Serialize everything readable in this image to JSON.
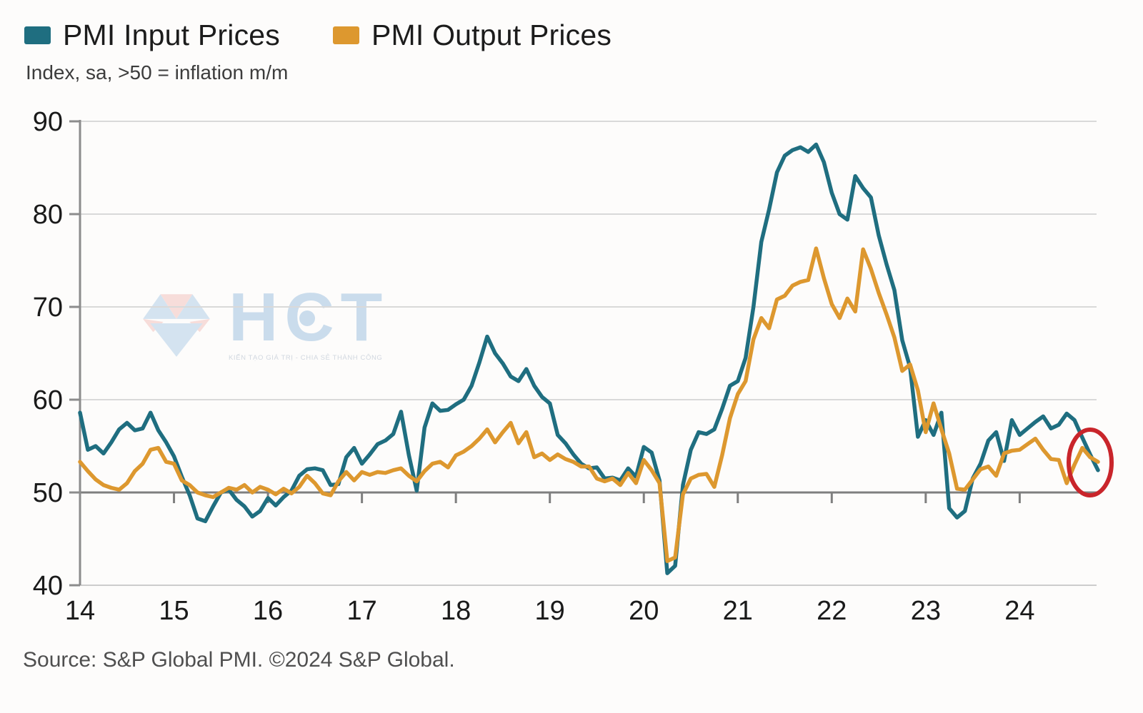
{
  "legend": [
    {
      "label": "PMI Input Prices",
      "color": "#1f6e80"
    },
    {
      "label": "PMI Output Prices",
      "color": "#dd982f"
    }
  ],
  "subtitle": "Index, sa, >50 = inflation m/m",
  "source": "Source: S&P Global PMI. ©2024 S&P Global.",
  "watermark": {
    "text": "HCT",
    "tagline": "KIẾN TẠO GIÁ TRỊ - CHIA SẺ THÀNH CÔNG",
    "text_color": "#a9c7e3",
    "logo_blue": "#b9d3ea",
    "logo_pink": "#f4c9c5"
  },
  "chart_data": {
    "type": "line",
    "title": "",
    "xlabel": "",
    "ylabel": "",
    "x_unit": "year",
    "frequency": "monthly",
    "x_range": [
      "2014-01",
      "2024-11"
    ],
    "x_tick_labels": [
      "14",
      "15",
      "16",
      "17",
      "18",
      "19",
      "20",
      "21",
      "22",
      "23",
      "24"
    ],
    "y_ticks": [
      40,
      50,
      60,
      70,
      80,
      90
    ],
    "ylim": [
      40,
      90
    ],
    "baseline_value": 50,
    "grid": true,
    "legend_position": "top-left",
    "colors": {
      "grid": "#d9d9d9",
      "grid_bottom": "#cccccc",
      "baseline": "#7f7f7f",
      "axis": "#8c8c8c",
      "tick_label": "#1a1a1a"
    },
    "series": [
      {
        "name": "PMI Input Prices",
        "color": "#1f6e80",
        "values": [
          58.6,
          54.6,
          55.0,
          54.2,
          55.4,
          56.8,
          57.5,
          56.7,
          56.9,
          58.6,
          56.7,
          55.4,
          53.9,
          51.7,
          49.7,
          47.2,
          46.9,
          48.5,
          50.0,
          50.3,
          49.2,
          48.5,
          47.4,
          48.0,
          49.4,
          48.6,
          49.5,
          50.2,
          51.8,
          52.5,
          52.6,
          52.4,
          50.8,
          50.9,
          53.8,
          54.8,
          53.1,
          54.1,
          55.2,
          55.6,
          56.3,
          58.7,
          54.0,
          50.2,
          57.0,
          59.6,
          58.8,
          58.9,
          59.5,
          60.0,
          61.5,
          64.0,
          66.8,
          65.0,
          63.9,
          62.5,
          62.0,
          63.3,
          61.5,
          60.3,
          59.6,
          56.2,
          55.3,
          54.1,
          53.1,
          52.6,
          52.7,
          51.5,
          51.6,
          51.3,
          52.6,
          51.7,
          54.9,
          54.3,
          51.3,
          41.3,
          42.1,
          50.8,
          54.6,
          56.5,
          56.3,
          56.8,
          59.0,
          61.5,
          62.0,
          64.5,
          70.0,
          77.0,
          80.5,
          84.5,
          86.3,
          86.9,
          87.2,
          86.7,
          87.5,
          85.6,
          82.3,
          80.0,
          79.4,
          84.1,
          82.8,
          81.8,
          77.7,
          74.6,
          71.8,
          66.4,
          63.5,
          56.0,
          57.8,
          56.2,
          58.6,
          48.3,
          47.3,
          48.0,
          51.5,
          53.1,
          55.6,
          56.5,
          53.4,
          57.8,
          56.2,
          56.9,
          57.6,
          58.2,
          56.9,
          57.3,
          58.5,
          57.8,
          55.9,
          54.1,
          52.4
        ]
      },
      {
        "name": "PMI Output Prices",
        "color": "#dd982f",
        "values": [
          53.3,
          52.3,
          51.4,
          50.8,
          50.5,
          50.3,
          51.0,
          52.3,
          53.1,
          54.6,
          54.8,
          53.3,
          53.1,
          51.3,
          50.8,
          50.0,
          49.7,
          49.5,
          50.0,
          50.5,
          50.3,
          50.8,
          50.0,
          50.6,
          50.3,
          49.8,
          50.4,
          49.9,
          50.6,
          51.8,
          51.0,
          49.9,
          49.7,
          51.2,
          52.2,
          51.3,
          52.2,
          51.9,
          52.2,
          52.1,
          52.4,
          52.6,
          51.8,
          51.2,
          52.3,
          53.1,
          53.3,
          52.7,
          54.0,
          54.4,
          55.0,
          55.8,
          56.8,
          55.4,
          56.5,
          57.5,
          55.3,
          56.5,
          53.8,
          54.2,
          53.5,
          54.1,
          53.6,
          53.3,
          52.8,
          52.8,
          51.5,
          51.2,
          51.5,
          50.8,
          52.1,
          51.0,
          53.5,
          52.4,
          51.0,
          42.6,
          43.0,
          49.8,
          51.5,
          51.9,
          52.0,
          50.6,
          54.0,
          58.0,
          60.6,
          62.0,
          66.5,
          68.8,
          67.7,
          70.8,
          71.2,
          72.3,
          72.7,
          72.9,
          76.3,
          73.1,
          70.3,
          68.8,
          70.9,
          69.5,
          76.2,
          74.1,
          71.5,
          69.2,
          66.7,
          63.1,
          63.8,
          61.0,
          56.5,
          59.6,
          56.8,
          54.2,
          50.4,
          50.3,
          51.4,
          52.5,
          52.8,
          51.8,
          54.2,
          54.5,
          54.6,
          55.2,
          55.8,
          54.6,
          53.6,
          53.5,
          51.0,
          53.0,
          54.8,
          53.8,
          53.3
        ]
      }
    ],
    "annotation": {
      "type": "ellipse",
      "highlights": "latest readings (input ~52, output ~53)",
      "color": "#c9252b"
    }
  }
}
